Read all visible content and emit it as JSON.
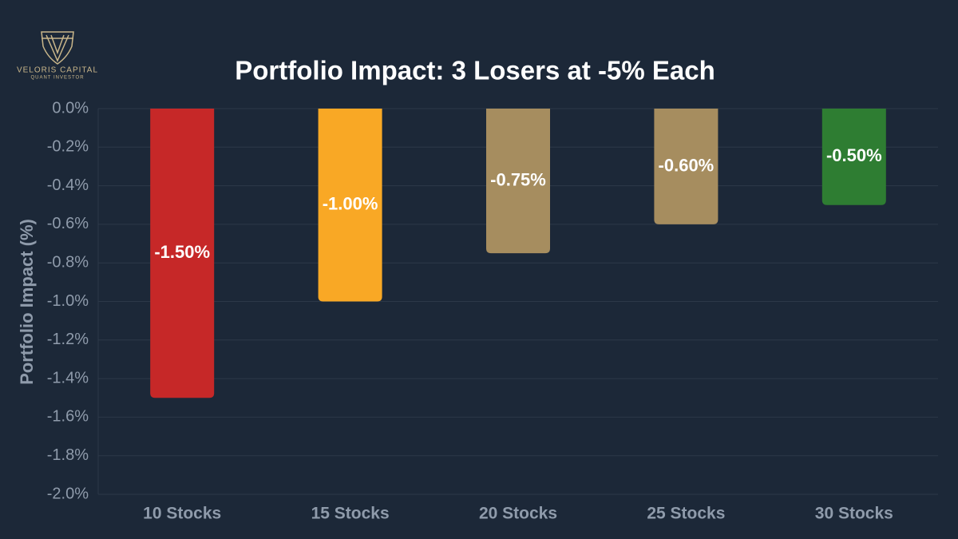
{
  "logo": {
    "name": "VELORIS CAPITAL",
    "tagline": "QUANT INVESTOR"
  },
  "chart_data": {
    "type": "bar",
    "title": "Portfolio Impact: 3 Losers at -5% Each",
    "y_label": "Portfolio Impact (%)",
    "categories": [
      "10 Stocks",
      "15 Stocks",
      "20 Stocks",
      "25 Stocks",
      "30 Stocks"
    ],
    "values": [
      -1.5,
      -1.0,
      -0.75,
      -0.6,
      -0.5
    ],
    "value_labels": [
      "-1.50%",
      "-1.00%",
      "-0.75%",
      "-0.60%",
      "-0.50%"
    ],
    "colors": [
      "#c62828",
      "#f9a825",
      "#a68d5f",
      "#a68d5f",
      "#2e7d32"
    ],
    "ylim": [
      -2.0,
      0.0
    ],
    "yticks": [
      {
        "value": 0.0,
        "label": "0.0%"
      },
      {
        "value": -0.2,
        "label": "-0.2%"
      },
      {
        "value": -0.4,
        "label": "-0.4%"
      },
      {
        "value": -0.6,
        "label": "-0.6%"
      },
      {
        "value": -0.8,
        "label": "-0.8%"
      },
      {
        "value": -1.0,
        "label": "-1.0%"
      },
      {
        "value": -1.2,
        "label": "-1.2%"
      },
      {
        "value": -1.4,
        "label": "-1.4%"
      },
      {
        "value": -1.6,
        "label": "-1.6%"
      },
      {
        "value": -1.8,
        "label": "-1.8%"
      },
      {
        "value": -2.0,
        "label": "-2.0%"
      }
    ],
    "grid": true
  }
}
